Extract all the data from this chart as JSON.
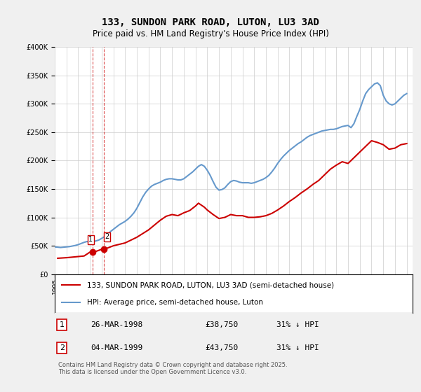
{
  "title": "133, SUNDON PARK ROAD, LUTON, LU3 3AD",
  "subtitle": "Price paid vs. HM Land Registry's House Price Index (HPI)",
  "ylabel_values": [
    "£0",
    "£50K",
    "£100K",
    "£150K",
    "£200K",
    "£250K",
    "£300K",
    "£350K",
    "£400K"
  ],
  "ylim": [
    0,
    400000
  ],
  "xlim_start": 1995.0,
  "xlim_end": 2025.5,
  "legend_line1": "133, SUNDON PARK ROAD, LUTON, LU3 3AD (semi-detached house)",
  "legend_line2": "HPI: Average price, semi-detached house, Luton",
  "transaction1_label": "1",
  "transaction1_date": "26-MAR-1998",
  "transaction1_price": "£38,750",
  "transaction1_hpi": "31% ↓ HPI",
  "transaction2_label": "2",
  "transaction2_date": "04-MAR-1999",
  "transaction2_price": "£43,750",
  "transaction2_hpi": "31% ↓ HPI",
  "footer": "Contains HM Land Registry data © Crown copyright and database right 2025.\nThis data is licensed under the Open Government Licence v3.0.",
  "red_color": "#cc0000",
  "blue_color": "#6699cc",
  "bg_color": "#f0f0f0",
  "plot_bg": "#ffffff",
  "hpi_data": {
    "years": [
      1995.0,
      1995.25,
      1995.5,
      1995.75,
      1996.0,
      1996.25,
      1996.5,
      1996.75,
      1997.0,
      1997.25,
      1997.5,
      1997.75,
      1998.0,
      1998.25,
      1998.5,
      1998.75,
      1999.0,
      1999.25,
      1999.5,
      1999.75,
      2000.0,
      2000.25,
      2000.5,
      2000.75,
      2001.0,
      2001.25,
      2001.5,
      2001.75,
      2002.0,
      2002.25,
      2002.5,
      2002.75,
      2003.0,
      2003.25,
      2003.5,
      2003.75,
      2004.0,
      2004.25,
      2004.5,
      2004.75,
      2005.0,
      2005.25,
      2005.5,
      2005.75,
      2006.0,
      2006.25,
      2006.5,
      2006.75,
      2007.0,
      2007.25,
      2007.5,
      2007.75,
      2008.0,
      2008.25,
      2008.5,
      2008.75,
      2009.0,
      2009.25,
      2009.5,
      2009.75,
      2010.0,
      2010.25,
      2010.5,
      2010.75,
      2011.0,
      2011.25,
      2011.5,
      2011.75,
      2012.0,
      2012.25,
      2012.5,
      2012.75,
      2013.0,
      2013.25,
      2013.5,
      2013.75,
      2014.0,
      2014.25,
      2014.5,
      2014.75,
      2015.0,
      2015.25,
      2015.5,
      2015.75,
      2016.0,
      2016.25,
      2016.5,
      2016.75,
      2017.0,
      2017.25,
      2017.5,
      2017.75,
      2018.0,
      2018.25,
      2018.5,
      2018.75,
      2019.0,
      2019.25,
      2019.5,
      2019.75,
      2020.0,
      2020.25,
      2020.5,
      2020.75,
      2021.0,
      2021.25,
      2021.5,
      2021.75,
      2022.0,
      2022.25,
      2022.5,
      2022.75,
      2023.0,
      2023.25,
      2023.5,
      2023.75,
      2024.0,
      2024.25,
      2024.5,
      2024.75,
      2025.0
    ],
    "values": [
      48000,
      47500,
      47000,
      47500,
      48000,
      48500,
      49500,
      50500,
      52000,
      54000,
      56000,
      57500,
      56000,
      57000,
      58500,
      60000,
      63000,
      66000,
      70000,
      75000,
      79000,
      83000,
      87000,
      90000,
      93000,
      97000,
      102000,
      108000,
      116000,
      126000,
      136000,
      144000,
      150000,
      155000,
      158000,
      160000,
      162000,
      165000,
      167000,
      168000,
      168000,
      167000,
      166000,
      166000,
      168000,
      172000,
      176000,
      180000,
      185000,
      190000,
      193000,
      190000,
      183000,
      174000,
      163000,
      153000,
      148000,
      149000,
      152000,
      158000,
      163000,
      165000,
      164000,
      162000,
      161000,
      161000,
      161000,
      160000,
      161000,
      163000,
      165000,
      167000,
      170000,
      174000,
      180000,
      187000,
      195000,
      202000,
      208000,
      213000,
      218000,
      222000,
      226000,
      230000,
      233000,
      237000,
      241000,
      244000,
      246000,
      248000,
      250000,
      252000,
      253000,
      254000,
      255000,
      255000,
      256000,
      258000,
      260000,
      261000,
      262000,
      258000,
      265000,
      278000,
      290000,
      305000,
      318000,
      325000,
      330000,
      335000,
      337000,
      332000,
      315000,
      305000,
      300000,
      298000,
      300000,
      305000,
      310000,
      315000,
      318000
    ]
  },
  "property_data": {
    "years": [
      1995.25,
      1996.0,
      1997.0,
      1997.5,
      1998.0,
      1998.5,
      1999.0,
      1999.5,
      2000.0,
      2001.0,
      2002.0,
      2003.0,
      2004.0,
      2004.5,
      2005.0,
      2005.5,
      2006.0,
      2006.5,
      2007.0,
      2007.25,
      2007.75,
      2008.0,
      2008.5,
      2009.0,
      2009.5,
      2010.0,
      2010.5,
      2011.0,
      2011.5,
      2012.0,
      2012.5,
      2013.0,
      2013.5,
      2014.0,
      2014.5,
      2015.0,
      2015.5,
      2016.0,
      2016.5,
      2017.0,
      2017.5,
      2018.0,
      2018.5,
      2019.0,
      2019.5,
      2020.0,
      2021.0,
      2021.5,
      2022.0,
      2022.5,
      2023.0,
      2023.5,
      2024.0,
      2024.5,
      2025.0
    ],
    "values": [
      28000,
      29000,
      31000,
      32000,
      38750,
      40000,
      43750,
      46000,
      50000,
      55000,
      65000,
      78000,
      95000,
      102000,
      105000,
      103000,
      108000,
      112000,
      120000,
      125000,
      118000,
      113000,
      105000,
      98000,
      100000,
      105000,
      103000,
      103000,
      100000,
      100000,
      101000,
      103000,
      107000,
      113000,
      120000,
      128000,
      135000,
      143000,
      150000,
      158000,
      165000,
      175000,
      185000,
      192000,
      198000,
      195000,
      215000,
      225000,
      235000,
      232000,
      228000,
      220000,
      222000,
      228000,
      230000
    ]
  },
  "transaction1_x": 1998.23,
  "transaction1_y": 38750,
  "transaction2_x": 1999.17,
  "transaction2_y": 43750,
  "vline1_x": 1998.23,
  "vline2_x": 1999.17
}
